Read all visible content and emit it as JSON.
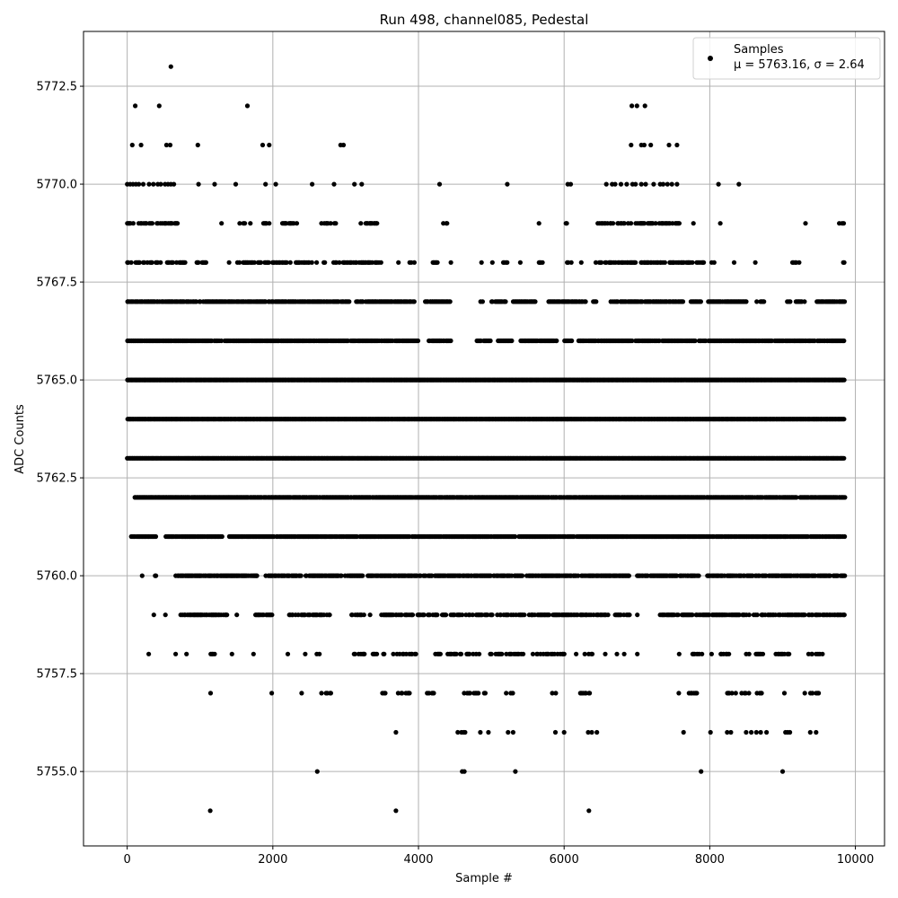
{
  "chart_data": {
    "type": "scatter",
    "title": "Run 498, channel085, Pedestal",
    "xlabel": "Sample #",
    "ylabel": "ADC Counts",
    "xlim": [
      -600,
      10400
    ],
    "ylim": [
      5753.1,
      5773.9
    ],
    "x_ticks": [
      0,
      2000,
      4000,
      6000,
      8000,
      10000
    ],
    "y_ticks": [
      5755.0,
      5757.5,
      5760.0,
      5762.5,
      5765.0,
      5767.5,
      5770.0,
      5772.5
    ],
    "x_tick_labels": [
      "0",
      "2000",
      "4000",
      "6000",
      "8000",
      "10000"
    ],
    "y_tick_labels": [
      "5755.0",
      "5757.5",
      "5760.0",
      "5762.5",
      "5765.0",
      "5767.5",
      "5770.0",
      "5772.5"
    ],
    "grid": true,
    "marker_color": "#000000",
    "legend": {
      "placement": "top-right",
      "label_line1": "Samples",
      "label_line2": "μ = 5763.16, σ = 2.64"
    },
    "sample_range": [
      0,
      9850
    ],
    "series": [
      {
        "name": "Samples",
        "levels": [
          {
            "y": 5773,
            "x": [
              600
            ]
          },
          {
            "y": 5772,
            "x": [
              110,
              440,
              1650,
              6930,
              7000,
              7110
            ]
          },
          {
            "y": 5771,
            "x": [
              70,
              190,
              540,
              590,
              970,
              1860,
              1950,
              2930,
              2970,
              6920,
              7060,
              7100,
              7190,
              7440,
              7550
            ]
          },
          {
            "y": 5770,
            "x": [
              0,
              40,
              80,
              120,
              160,
              220,
              300,
              360,
              420,
              460,
              520,
              560,
              600,
              640,
              980,
              1200,
              1490,
              1900,
              2040,
              2540,
              2840,
              3120,
              3220,
              4290,
              5220,
              6050,
              6090,
              6580,
              6660,
              6700,
              6780,
              6860,
              6940,
              6980,
              7060,
              7120,
              7230,
              7320,
              7360,
              7420,
              7480,
              7550,
              8120,
              8400
            ]
          }
        ],
        "bands": [
          {
            "y": 5769,
            "density": 0.45,
            "segments": [
              [
                0,
                700
              ],
              [
                940,
                1000
              ],
              [
                1290,
                1300
              ],
              [
                1530,
                1700
              ],
              [
                1870,
                2000
              ],
              [
                2130,
                2350
              ],
              [
                2650,
                2900
              ],
              [
                3180,
                3430
              ],
              [
                3760,
                3780
              ],
              [
                4340,
                4400
              ],
              [
                5650,
                5660
              ],
              [
                6020,
                6070
              ],
              [
                6240,
                6260
              ],
              [
                6460,
                7600
              ],
              [
                7760,
                7780
              ],
              [
                8100,
                8150
              ],
              [
                8440,
                8460
              ],
              [
                9310,
                9330
              ],
              [
                9760,
                9840
              ]
            ]
          },
          {
            "y": 5768,
            "density": 0.6,
            "segments": [
              [
                0,
                800
              ],
              [
                950,
                1100
              ],
              [
                1380,
                1400
              ],
              [
                1510,
                2250
              ],
              [
                2300,
                2600
              ],
              [
                2700,
                2740
              ],
              [
                2830,
                3500
              ],
              [
                3720,
                3730
              ],
              [
                3860,
                3940
              ],
              [
                4180,
                4260
              ],
              [
                4440,
                4450
              ],
              [
                4860,
                4870
              ],
              [
                5010,
                5020
              ],
              [
                5150,
                5220
              ],
              [
                5370,
                5400
              ],
              [
                5650,
                5710
              ],
              [
                6040,
                6100
              ],
              [
                6230,
                6240
              ],
              [
                6430,
                7950
              ],
              [
                8020,
                8100
              ],
              [
                8330,
                8340
              ],
              [
                8620,
                8630
              ],
              [
                9130,
                9260
              ],
              [
                9830,
                9850
              ]
            ]
          },
          {
            "y": 5767,
            "density": 0.85,
            "segments": [
              [
                0,
                3050
              ],
              [
                3130,
                3950
              ],
              [
                4090,
                4440
              ],
              [
                4850,
                4880
              ],
              [
                5000,
                5200
              ],
              [
                5300,
                5600
              ],
              [
                5770,
                6300
              ],
              [
                6400,
                6450
              ],
              [
                6640,
                7640
              ],
              [
                7740,
                7870
              ],
              [
                7980,
                8500
              ],
              [
                8640,
                8770
              ],
              [
                9060,
                9100
              ],
              [
                9180,
                9300
              ],
              [
                9470,
                9850
              ]
            ]
          },
          {
            "y": 5766,
            "density": 0.9,
            "segments": [
              [
                0,
                4000
              ],
              [
                4140,
                4450
              ],
              [
                4800,
                5000
              ],
              [
                5080,
                5280
              ],
              [
                5400,
                5900
              ],
              [
                6000,
                6110
              ],
              [
                6200,
                9850
              ]
            ]
          },
          {
            "y": 5765,
            "density": 1.0,
            "segments": [
              [
                0,
                9850
              ]
            ]
          },
          {
            "y": 5764,
            "density": 1.0,
            "segments": [
              [
                0,
                9850
              ]
            ]
          },
          {
            "y": 5763,
            "density": 1.0,
            "segments": [
              [
                0,
                9850
              ]
            ]
          },
          {
            "y": 5762,
            "density": 0.95,
            "segments": [
              [
                100,
                9850
              ]
            ]
          },
          {
            "y": 5761,
            "density": 0.9,
            "segments": [
              [
                50,
                400
              ],
              [
                530,
                1300
              ],
              [
                1400,
                9850
              ]
            ]
          },
          {
            "y": 5760,
            "density": 0.8,
            "segments": [
              [
                200,
                210
              ],
              [
                380,
                400
              ],
              [
                650,
                1800
              ],
              [
                1900,
                3250
              ],
              [
                3300,
                6900
              ],
              [
                7000,
                7850
              ],
              [
                7950,
                9850
              ]
            ]
          },
          {
            "y": 5759,
            "density": 0.65,
            "segments": [
              [
                360,
                370
              ],
              [
                520,
                530
              ],
              [
                730,
                1400
              ],
              [
                1500,
                1510
              ],
              [
                1750,
                2000
              ],
              [
                2220,
                2800
              ],
              [
                3050,
                3250
              ],
              [
                3330,
                3340
              ],
              [
                3490,
                6600
              ],
              [
                6700,
                6900
              ],
              [
                7000,
                7010
              ],
              [
                7300,
                7560
              ],
              [
                7600,
                9850
              ]
            ]
          },
          {
            "y": 5758,
            "density": 0.45,
            "segments": [
              [
                290,
                300
              ],
              [
                660,
                670
              ],
              [
                810,
                820
              ],
              [
                1120,
                1200
              ],
              [
                1410,
                1450
              ],
              [
                1730,
                1740
              ],
              [
                2200,
                2210
              ],
              [
                2440,
                2450
              ],
              [
                2600,
                2650
              ],
              [
                3100,
                3450
              ],
              [
                3500,
                3550
              ],
              [
                3650,
                3980
              ],
              [
                4180,
                4300
              ],
              [
                4400,
                4880
              ],
              [
                4970,
                6000
              ],
              [
                6160,
                6170
              ],
              [
                6280,
                6400
              ],
              [
                6560,
                6570
              ],
              [
                6720,
                6730
              ],
              [
                6820,
                6830
              ],
              [
                7000,
                7010
              ],
              [
                7580,
                7600
              ],
              [
                7760,
                7900
              ],
              [
                8020,
                8030
              ],
              [
                8120,
                8300
              ],
              [
                8500,
                8540
              ],
              [
                8620,
                8750
              ],
              [
                8880,
                9200
              ],
              [
                9340,
                9550
              ]
            ]
          },
          {
            "y": 5757,
            "density": 0.35,
            "segments": [
              [
                1140,
                1150
              ],
              [
                1980,
                1990
              ],
              [
                2340,
                2400
              ],
              [
                2600,
                2800
              ],
              [
                3490,
                3550
              ],
              [
                3720,
                3900
              ],
              [
                4050,
                4300
              ],
              [
                4440,
                4460
              ],
              [
                4600,
                4980
              ],
              [
                5200,
                5300
              ],
              [
                5820,
                5900
              ],
              [
                6220,
                6400
              ],
              [
                7570,
                7580
              ],
              [
                7700,
                7830
              ],
              [
                8200,
                8550
              ],
              [
                8620,
                8720
              ],
              [
                8970,
                9080
              ],
              [
                9180,
                9200
              ],
              [
                9300,
                9550
              ],
              [
                9800,
                9820
              ]
            ]
          }
        ],
        "sparse": [
          {
            "y": 5756,
            "x": [
              3690,
              4540,
              4590,
              4620,
              4640,
              4850,
              4960,
              5230,
              5300,
              5880,
              6000,
              6330,
              6380,
              6450,
              7640,
              8010,
              8240,
              8290,
              8500,
              8570,
              8640,
              8700,
              8780,
              9040,
              9070,
              9100,
              9380,
              9460
            ]
          },
          {
            "y": 5755,
            "x": [
              2610,
              4600,
              4630,
              5330,
              7880,
              9000
            ]
          },
          {
            "y": 5754,
            "x": [
              1140,
              3690,
              6340
            ]
          }
        ]
      }
    ]
  }
}
